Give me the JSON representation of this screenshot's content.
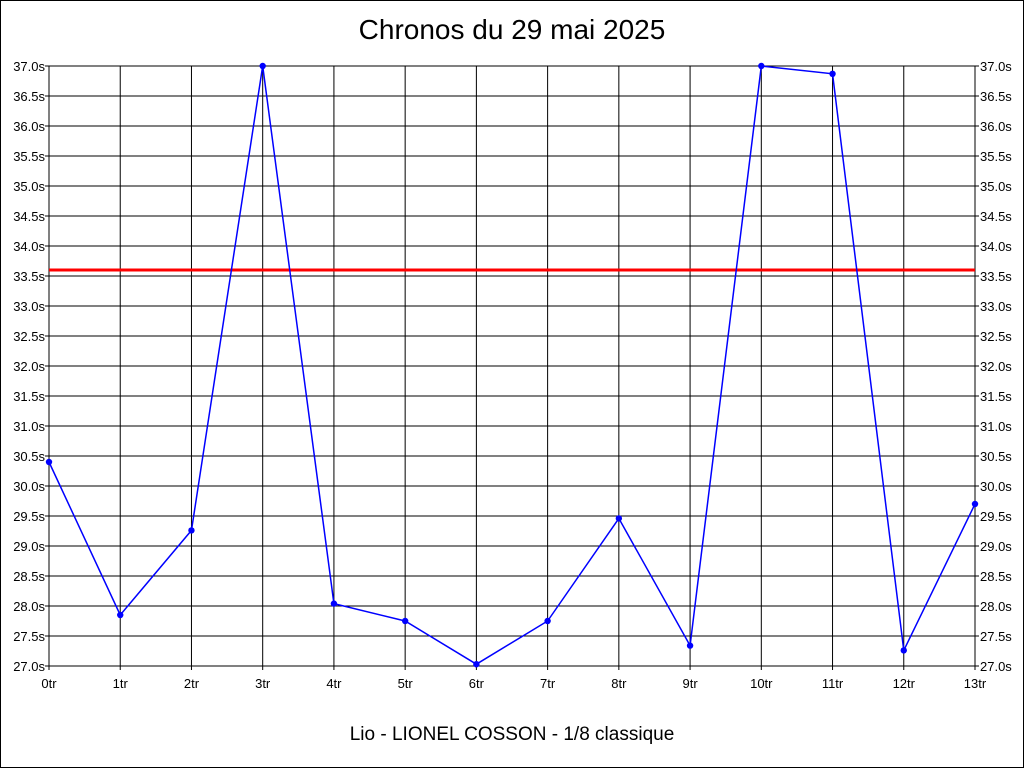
{
  "chart_data": {
    "type": "line",
    "title": "Chronos du 29 mai 2025",
    "xlabel": "Lio - LIONEL COSSON - 1/8 classique",
    "ylabel": "",
    "categories": [
      "0tr",
      "1tr",
      "2tr",
      "3tr",
      "4tr",
      "5tr",
      "6tr",
      "7tr",
      "8tr",
      "9tr",
      "10tr",
      "11tr",
      "12tr",
      "13tr"
    ],
    "y_ticks": [
      "27.0s",
      "27.5s",
      "28.0s",
      "28.5s",
      "29.0s",
      "29.5s",
      "30.0s",
      "30.5s",
      "31.0s",
      "31.5s",
      "32.0s",
      "32.5s",
      "33.0s",
      "33.5s",
      "34.0s",
      "34.5s",
      "35.0s",
      "35.5s",
      "36.0s",
      "36.5s",
      "37.0s"
    ],
    "ylim": [
      27.0,
      37.0
    ],
    "grid": true,
    "y_axis_both_sides": true,
    "series": [
      {
        "values": [
          30.4,
          27.85,
          29.26,
          37.0,
          28.04,
          27.75,
          27.03,
          27.75,
          29.46,
          27.34,
          37.0,
          36.87,
          27.26,
          29.7
        ],
        "color": "#0000ff"
      }
    ],
    "reference_line": {
      "value": 33.6,
      "color": "#ff0000"
    }
  }
}
